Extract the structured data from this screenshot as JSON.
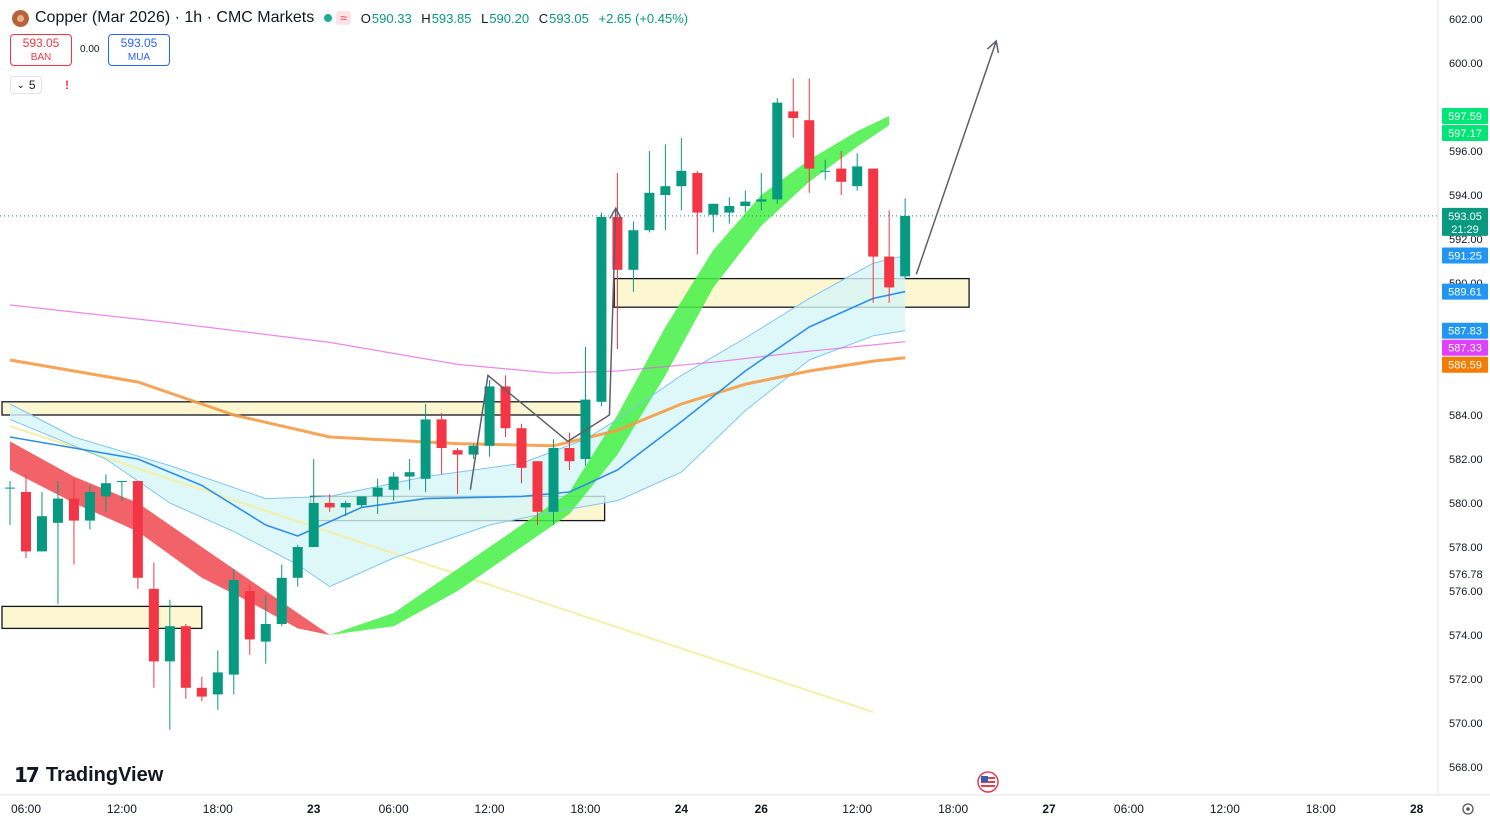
{
  "header": {
    "title": "Copper (Mar 2026) · 1h · CMC Markets",
    "wave_symbol": "≈",
    "o_label": "O",
    "o": "590.33",
    "h_label": "H",
    "h": "593.85",
    "l_label": "L",
    "l": "590.20",
    "c_label": "C",
    "c": "593.05",
    "change": "+2.65 (+0.45%)"
  },
  "trade": {
    "sell_price": "593.05",
    "sell_label": "BAN",
    "spread": "0.00",
    "buy_price": "593.05",
    "buy_label": "MUA"
  },
  "indicators": {
    "count": "5",
    "warning": "!"
  },
  "brand": {
    "logo_text": "TradingView"
  },
  "colors": {
    "bull": "#089981",
    "bear": "#f23645",
    "cloud_green": "#44f044",
    "cloud_red": "#f0484f",
    "ema_orange": "#f59a45",
    "ma_pink": "#e65ee6",
    "ma_blue": "#2e8fe6",
    "band_fill": "#d6f5f8",
    "zone_fill": "#fbf6c8"
  },
  "chart_data": {
    "type": "candlestick",
    "symbol": "Copper (Mar 2026)",
    "timeframe": "1h",
    "y_ticks": [
      602,
      600,
      596,
      594,
      592,
      590,
      584,
      582,
      580,
      578,
      576.78,
      576,
      574,
      572,
      570,
      568
    ],
    "y_tick_labels": [
      "602.00",
      "600.00",
      "596.00",
      "594.00",
      "592.00",
      "590.00",
      "584.00",
      "582.00",
      "580.00",
      "578.00",
      "576.78",
      "576.00",
      "574.00",
      "572.00",
      "570.00",
      "568.00"
    ],
    "x_tick_labels": [
      "06:00",
      "12:00",
      "18:00",
      "23",
      "06:00",
      "12:00",
      "18:00",
      "24",
      "26",
      "12:00",
      "18:00",
      "27",
      "06:00",
      "12:00",
      "18:00",
      "28"
    ],
    "bold_x_ticks": [
      "23",
      "24",
      "26",
      "27",
      "28"
    ],
    "price_labels": [
      {
        "text": "597.59",
        "color": "#00e676",
        "value": 597.59
      },
      {
        "text": "597.17",
        "color": "#00e676",
        "value": 597.17
      },
      {
        "text": "593.05",
        "color": "#089981",
        "value": 593.05,
        "sub": "21:29"
      },
      {
        "text": "591.25",
        "color": "#2196f3",
        "value": 591.25
      },
      {
        "text": "589.61",
        "color": "#2196f3",
        "value": 589.61
      },
      {
        "text": "587.83",
        "color": "#2196f3",
        "value": 587.83
      },
      {
        "text": "587.33",
        "color": "#e040fb",
        "value": 587.33
      },
      {
        "text": "586.59",
        "color": "#f57c00",
        "value": 586.59
      }
    ],
    "last_price": 593.05,
    "candles": [
      {
        "o": 580.7,
        "h": 581.0,
        "l": 579.0,
        "c": 580.7
      },
      {
        "o": 580.5,
        "h": 581.3,
        "l": 577.5,
        "c": 577.8
      },
      {
        "o": 577.8,
        "h": 580.5,
        "l": 577.8,
        "c": 579.4
      },
      {
        "o": 579.1,
        "h": 581.0,
        "l": 575.4,
        "c": 580.2
      },
      {
        "o": 580.2,
        "h": 581.1,
        "l": 577.2,
        "c": 579.2
      },
      {
        "o": 579.2,
        "h": 580.8,
        "l": 578.8,
        "c": 580.5
      },
      {
        "o": 580.3,
        "h": 581.3,
        "l": 579.6,
        "c": 580.9
      },
      {
        "o": 581.0,
        "h": 581.0,
        "l": 580.1,
        "c": 581.0
      },
      {
        "o": 581.0,
        "h": 581.0,
        "l": 576.1,
        "c": 576.6
      },
      {
        "o": 576.1,
        "h": 577.3,
        "l": 571.6,
        "c": 572.8
      },
      {
        "o": 572.8,
        "h": 575.6,
        "l": 569.7,
        "c": 574.4
      },
      {
        "o": 574.4,
        "h": 574.5,
        "l": 571.1,
        "c": 571.6
      },
      {
        "o": 571.6,
        "h": 572.1,
        "l": 571.0,
        "c": 571.2
      },
      {
        "o": 571.3,
        "h": 573.3,
        "l": 570.6,
        "c": 572.3
      },
      {
        "o": 572.2,
        "h": 577.0,
        "l": 571.3,
        "c": 576.5
      },
      {
        "o": 576.0,
        "h": 576.3,
        "l": 573.1,
        "c": 573.8
      },
      {
        "o": 573.7,
        "h": 575.8,
        "l": 572.7,
        "c": 574.5
      },
      {
        "o": 574.5,
        "h": 577.2,
        "l": 574.4,
        "c": 576.6
      },
      {
        "o": 576.6,
        "h": 578.1,
        "l": 576.2,
        "c": 578.0
      },
      {
        "o": 578.0,
        "h": 582.0,
        "l": 578.0,
        "c": 580.0
      },
      {
        "o": 580.0,
        "h": 580.4,
        "l": 579.6,
        "c": 579.8
      },
      {
        "o": 579.8,
        "h": 580.1,
        "l": 579.4,
        "c": 580.0
      },
      {
        "o": 579.9,
        "h": 580.3,
        "l": 579.8,
        "c": 580.3
      },
      {
        "o": 580.3,
        "h": 581.1,
        "l": 579.5,
        "c": 580.7
      },
      {
        "o": 580.6,
        "h": 581.4,
        "l": 580.1,
        "c": 581.2
      },
      {
        "o": 581.2,
        "h": 582.0,
        "l": 580.6,
        "c": 581.4
      },
      {
        "o": 581.1,
        "h": 584.5,
        "l": 580.5,
        "c": 583.8
      },
      {
        "o": 583.8,
        "h": 584.1,
        "l": 581.3,
        "c": 582.5
      },
      {
        "o": 582.4,
        "h": 582.5,
        "l": 580.4,
        "c": 582.2
      },
      {
        "o": 582.2,
        "h": 582.7,
        "l": 582.0,
        "c": 582.6
      },
      {
        "o": 582.6,
        "h": 585.6,
        "l": 582.1,
        "c": 585.3
      },
      {
        "o": 585.3,
        "h": 585.8,
        "l": 583.0,
        "c": 583.4
      },
      {
        "o": 583.4,
        "h": 583.6,
        "l": 580.9,
        "c": 581.6
      },
      {
        "o": 581.9,
        "h": 581.9,
        "l": 579.0,
        "c": 579.6
      },
      {
        "o": 579.6,
        "h": 582.9,
        "l": 579.0,
        "c": 582.5
      },
      {
        "o": 582.5,
        "h": 583.2,
        "l": 581.5,
        "c": 581.9
      },
      {
        "o": 582.0,
        "h": 587.1,
        "l": 581.7,
        "c": 584.7
      },
      {
        "o": 584.6,
        "h": 593.2,
        "l": 584.4,
        "c": 593.0
      },
      {
        "o": 593.0,
        "h": 595.0,
        "l": 587.0,
        "c": 590.6
      },
      {
        "o": 590.6,
        "h": 592.8,
        "l": 589.6,
        "c": 592.4
      },
      {
        "o": 592.4,
        "h": 596.0,
        "l": 592.3,
        "c": 594.1
      },
      {
        "o": 594.0,
        "h": 596.3,
        "l": 592.4,
        "c": 594.4
      },
      {
        "o": 594.4,
        "h": 596.6,
        "l": 593.3,
        "c": 595.1
      },
      {
        "o": 595.0,
        "h": 595.1,
        "l": 591.3,
        "c": 593.2
      },
      {
        "o": 593.1,
        "h": 593.6,
        "l": 592.3,
        "c": 593.6
      },
      {
        "o": 593.2,
        "h": 593.9,
        "l": 592.7,
        "c": 593.5
      },
      {
        "o": 593.5,
        "h": 594.2,
        "l": 593.2,
        "c": 593.7
      },
      {
        "o": 593.7,
        "h": 595.0,
        "l": 593.3,
        "c": 593.8
      },
      {
        "o": 593.8,
        "h": 598.4,
        "l": 593.6,
        "c": 598.2
      },
      {
        "o": 597.8,
        "h": 599.3,
        "l": 596.6,
        "c": 597.5
      },
      {
        "o": 597.4,
        "h": 599.3,
        "l": 594.1,
        "c": 595.2
      },
      {
        "o": 595.1,
        "h": 595.6,
        "l": 594.7,
        "c": 595.1
      },
      {
        "o": 595.2,
        "h": 596.0,
        "l": 594.0,
        "c": 594.6
      },
      {
        "o": 594.4,
        "h": 595.9,
        "l": 594.2,
        "c": 595.3
      },
      {
        "o": 595.2,
        "h": 595.2,
        "l": 589.1,
        "c": 591.2
      },
      {
        "o": 591.2,
        "h": 593.3,
        "l": 589.1,
        "c": 589.8
      },
      {
        "o": 590.3,
        "h": 593.85,
        "l": 590.2,
        "c": 593.05
      }
    ],
    "zones": [
      {
        "x0": 0,
        "x1": 36.5,
        "top": 584.6,
        "bottom": 584.0
      },
      {
        "x0": 19.3,
        "x1": 37.7,
        "top": 580.3,
        "bottom": 579.2
      },
      {
        "x0": 0,
        "x1": 12.5,
        "top": 575.3,
        "bottom": 574.3
      },
      {
        "x0": 38.3,
        "x1": 60.5,
        "top": 590.2,
        "bottom": 588.9
      }
    ],
    "arrows": [
      {
        "points": [
          [
            28.8,
            580.6
          ],
          [
            29.9,
            585.8
          ],
          [
            34.9,
            582.8
          ],
          [
            37.5,
            584.0
          ],
          [
            37.9,
            593.4
          ]
        ],
        "head": "end"
      },
      {
        "points": [
          [
            56.7,
            590.4
          ],
          [
            61.7,
            601.0
          ]
        ],
        "head": "end"
      }
    ],
    "trendline": {
      "points": [
        [
          0,
          583.5
        ],
        [
          54,
          570.5
        ]
      ]
    },
    "series": {
      "ema_orange": [
        [
          0,
          586.5
        ],
        [
          8,
          585.5
        ],
        [
          14,
          584.0
        ],
        [
          20,
          583.0
        ],
        [
          28,
          582.7
        ],
        [
          34,
          582.6
        ],
        [
          38,
          583.3
        ],
        [
          42,
          584.5
        ],
        [
          46,
          585.4
        ],
        [
          50,
          586.0
        ],
        [
          54,
          586.45
        ],
        [
          56,
          586.6
        ]
      ],
      "ma_pink": [
        [
          0,
          589.0
        ],
        [
          10,
          588.2
        ],
        [
          20,
          587.3
        ],
        [
          28,
          586.3
        ],
        [
          34,
          585.9
        ],
        [
          38,
          586.0
        ],
        [
          44,
          586.4
        ],
        [
          50,
          586.9
        ],
        [
          56,
          587.33
        ]
      ],
      "mid_blue": [
        [
          0,
          583.0
        ],
        [
          4,
          582.5
        ],
        [
          8,
          582.0
        ],
        [
          12,
          580.8
        ],
        [
          16,
          579.0
        ],
        [
          18,
          578.5
        ],
        [
          22,
          579.8
        ],
        [
          26,
          580.2
        ],
        [
          32,
          580.3
        ],
        [
          35,
          580.5
        ],
        [
          38,
          581.5
        ],
        [
          42,
          583.7
        ],
        [
          46,
          586.0
        ],
        [
          50,
          588.0
        ],
        [
          54,
          589.3
        ],
        [
          56,
          589.61
        ]
      ],
      "band_upper": [
        [
          0,
          584.5
        ],
        [
          4,
          583.0
        ],
        [
          10,
          581.7
        ],
        [
          16,
          580.2
        ],
        [
          20,
          580.3
        ],
        [
          26,
          581.2
        ],
        [
          32,
          581.8
        ],
        [
          36,
          582.9
        ],
        [
          38,
          583.8
        ],
        [
          42,
          585.8
        ],
        [
          46,
          587.5
        ],
        [
          50,
          589.3
        ],
        [
          54,
          590.9
        ],
        [
          56,
          591.25
        ]
      ],
      "band_lower": [
        [
          0,
          583.8
        ],
        [
          6,
          582.0
        ],
        [
          10,
          580.0
        ],
        [
          14,
          578.7
        ],
        [
          18,
          577.2
        ],
        [
          20,
          576.2
        ],
        [
          24,
          577.5
        ],
        [
          30,
          579.0
        ],
        [
          34,
          579.6
        ],
        [
          38,
          580.1
        ],
        [
          42,
          581.4
        ],
        [
          46,
          584.2
        ],
        [
          50,
          586.5
        ],
        [
          54,
          587.6
        ],
        [
          56,
          587.83
        ]
      ],
      "cloud_red_upper": [
        [
          0,
          582.8
        ],
        [
          4,
          581.2
        ],
        [
          8,
          580.0
        ],
        [
          12,
          578.0
        ],
        [
          15,
          576.5
        ],
        [
          18,
          575.0
        ],
        [
          20,
          574.0
        ]
      ],
      "cloud_red_lower": [
        [
          0,
          581.5
        ],
        [
          4,
          580.0
        ],
        [
          8,
          578.7
        ],
        [
          12,
          576.6
        ],
        [
          15,
          575.5
        ],
        [
          18,
          574.3
        ],
        [
          20,
          574.0
        ]
      ],
      "cloud_green_upper": [
        [
          20,
          574.0
        ],
        [
          24,
          575.0
        ],
        [
          28,
          577.0
        ],
        [
          32,
          579.0
        ],
        [
          35,
          580.5
        ],
        [
          38,
          584.0
        ],
        [
          41,
          588.0
        ],
        [
          44,
          591.5
        ],
        [
          47,
          594.0
        ],
        [
          50,
          595.6
        ],
        [
          53,
          596.9
        ],
        [
          55,
          597.59
        ]
      ],
      "cloud_green_lower": [
        [
          20,
          574.0
        ],
        [
          24,
          574.4
        ],
        [
          28,
          576.0
        ],
        [
          32,
          578.0
        ],
        [
          35,
          579.5
        ],
        [
          38,
          582.2
        ],
        [
          41,
          585.8
        ],
        [
          44,
          589.8
        ],
        [
          47,
          592.6
        ],
        [
          50,
          594.6
        ],
        [
          53,
          596.2
        ],
        [
          55,
          597.17
        ]
      ]
    }
  }
}
